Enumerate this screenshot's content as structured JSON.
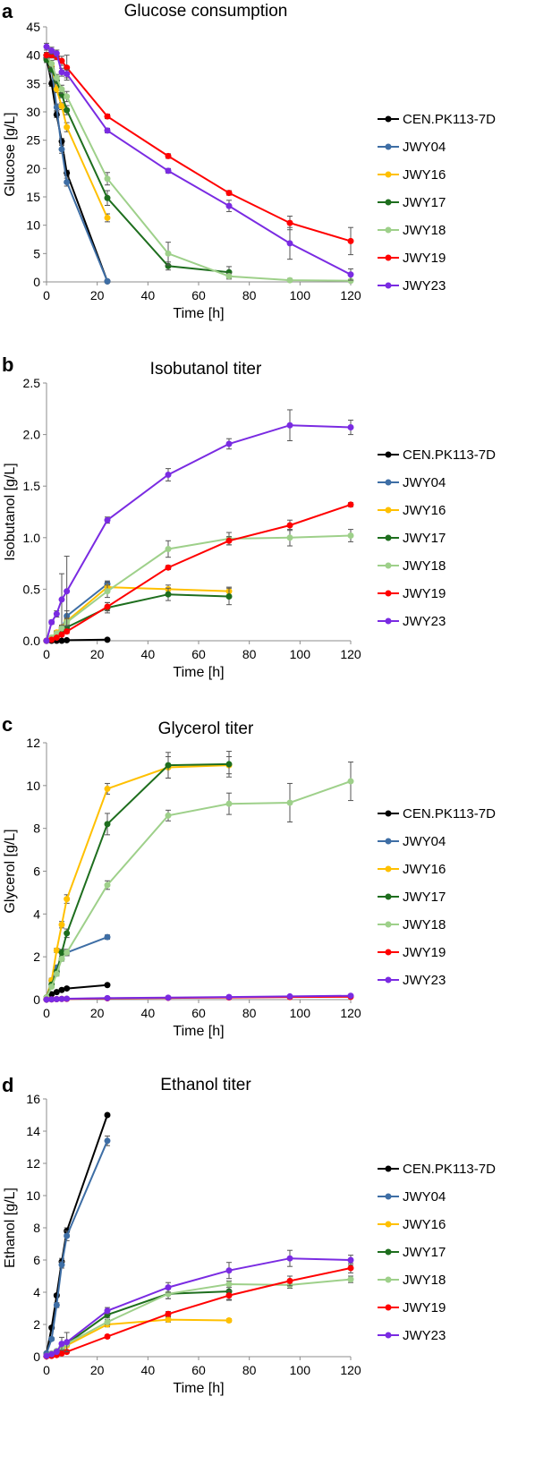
{
  "chart_data": [
    {
      "panel": "a",
      "type": "line",
      "title": "Glucose consumption",
      "xlabel": "Time [h]",
      "ylabel": "Glucose [g/L]",
      "xlim": [
        0,
        120
      ],
      "ylim": [
        0,
        45
      ],
      "xticks": [
        0,
        20,
        40,
        60,
        80,
        100,
        120
      ],
      "yticks": [
        0,
        5,
        10,
        15,
        20,
        25,
        30,
        35,
        40,
        45
      ],
      "grid": false,
      "legend": "right",
      "series": [
        {
          "name": "CEN.PK113-7D",
          "color": "#000000",
          "x": [
            0,
            2,
            4,
            6,
            8,
            24
          ],
          "y": [
            39.5,
            35.0,
            29.5,
            24.8,
            19.2,
            0.1
          ],
          "err": [
            0.5,
            0.5,
            0.5,
            0.5,
            0.5,
            0
          ]
        },
        {
          "name": "JWY04",
          "color": "#3E6EA5",
          "x": [
            0,
            2,
            4,
            6,
            8,
            24
          ],
          "y": [
            39.8,
            37.5,
            30.8,
            23.4,
            17.6,
            0.1
          ],
          "err": [
            0.5,
            0.6,
            0.6,
            0.7,
            0.7,
            0
          ]
        },
        {
          "name": "JWY16",
          "color": "#FFC000",
          "x": [
            0,
            2,
            4,
            6,
            8,
            24
          ],
          "y": [
            40.0,
            38.0,
            34.0,
            31.0,
            27.3,
            11.3
          ],
          "err": [
            0.5,
            0.6,
            0.6,
            0.6,
            0.8,
            0.7
          ]
        },
        {
          "name": "JWY17",
          "color": "#1E6E1E",
          "x": [
            0,
            2,
            4,
            6,
            8,
            24,
            48,
            72
          ],
          "y": [
            39.2,
            37.5,
            35.5,
            33.1,
            30.3,
            14.8,
            2.8,
            1.7
          ],
          "err": [
            0.5,
            0.5,
            0.6,
            0.6,
            0.8,
            1.3,
            0.7,
            1.0
          ]
        },
        {
          "name": "JWY18",
          "color": "#9ED08A",
          "x": [
            0,
            2,
            4,
            6,
            8,
            24,
            48,
            72,
            96,
            120
          ],
          "y": [
            40.0,
            38.5,
            36.0,
            34.0,
            32.7,
            18.2,
            5.0,
            1.0,
            0.3,
            0.2
          ],
          "err": [
            0.5,
            0.6,
            0.6,
            0.7,
            0.9,
            1.1,
            2.0,
            0.5,
            0.3,
            0.2
          ]
        },
        {
          "name": "JWY19",
          "color": "#FF0000",
          "x": [
            0,
            2,
            4,
            6,
            8,
            24,
            48,
            72,
            96,
            120
          ],
          "y": [
            40.0,
            40.0,
            39.7,
            39.0,
            37.8,
            29.2,
            22.2,
            15.7,
            10.4,
            7.2
          ],
          "err": [
            0.5,
            0.5,
            0.5,
            0.8,
            2.2,
            0.4,
            0.4,
            0.4,
            1.2,
            2.4
          ]
        },
        {
          "name": "JWY23",
          "color": "#7A2BE2",
          "x": [
            0,
            2,
            4,
            6,
            8,
            24,
            48,
            72,
            96,
            120
          ],
          "y": [
            41.5,
            40.8,
            40.3,
            37.0,
            36.7,
            26.7,
            19.6,
            13.4,
            6.8,
            1.3
          ],
          "err": [
            0.6,
            0.6,
            0.6,
            0.7,
            0.7,
            0.4,
            0.4,
            1.0,
            2.8,
            1.0
          ]
        }
      ]
    },
    {
      "panel": "b",
      "type": "line",
      "title": "Isobutanol titer",
      "xlabel": "Time [h]",
      "ylabel": "Isobutanol [g/L]",
      "xlim": [
        0,
        120
      ],
      "ylim": [
        0,
        2.5
      ],
      "xticks": [
        0,
        20,
        40,
        60,
        80,
        100,
        120
      ],
      "yticks": [
        "0.0",
        "0.5",
        "1.0",
        "1.5",
        "2.0",
        "2.5"
      ],
      "grid": false,
      "legend": "right",
      "series": [
        {
          "name": "CEN.PK113-7D",
          "color": "#000000",
          "x": [
            0,
            2,
            4,
            6,
            8,
            24
          ],
          "y": [
            0,
            0,
            0,
            0,
            0.005,
            0.01
          ],
          "err": [
            0,
            0,
            0,
            0,
            0,
            0
          ]
        },
        {
          "name": "JWY04",
          "color": "#3E6EA5",
          "x": [
            0,
            2,
            4,
            6,
            8,
            24
          ],
          "y": [
            0,
            0.02,
            0.06,
            0.12,
            0.24,
            0.55
          ],
          "err": [
            0,
            0.01,
            0.02,
            0.03,
            0.05,
            0.03
          ]
        },
        {
          "name": "JWY16",
          "color": "#FFC000",
          "x": [
            0,
            2,
            4,
            6,
            8,
            24,
            48,
            72
          ],
          "y": [
            0,
            0.03,
            0.08,
            0.13,
            0.19,
            0.52,
            0.5,
            0.48
          ],
          "err": [
            0,
            0.01,
            0.02,
            0.02,
            0.03,
            0.05,
            0.04,
            0.04
          ]
        },
        {
          "name": "JWY17",
          "color": "#1E6E1E",
          "x": [
            0,
            2,
            4,
            6,
            8,
            24,
            48,
            72
          ],
          "y": [
            0,
            0.02,
            0.05,
            0.09,
            0.13,
            0.32,
            0.45,
            0.43
          ],
          "err": [
            0,
            0.01,
            0.01,
            0.02,
            0.02,
            0.05,
            0.06,
            0.08
          ]
        },
        {
          "name": "JWY18",
          "color": "#9ED08A",
          "x": [
            0,
            2,
            4,
            6,
            8,
            24,
            48,
            72,
            96,
            120
          ],
          "y": [
            0,
            0.03,
            0.07,
            0.12,
            0.18,
            0.48,
            0.89,
            0.99,
            1.0,
            1.02
          ],
          "err": [
            0,
            0.01,
            0.02,
            0.02,
            0.03,
            0.06,
            0.08,
            0.06,
            0.08,
            0.06
          ]
        },
        {
          "name": "JWY19",
          "color": "#FF0000",
          "x": [
            0,
            2,
            4,
            6,
            8,
            24,
            48,
            72,
            96,
            120
          ],
          "y": [
            0,
            0.01,
            0.03,
            0.06,
            0.09,
            0.33,
            0.71,
            0.97,
            1.12,
            1.32
          ],
          "err": [
            0,
            0.01,
            0.01,
            0.01,
            0.02,
            0.04,
            0.02,
            0.04,
            0.05,
            0.02
          ]
        },
        {
          "name": "JWY23",
          "color": "#7A2BE2",
          "x": [
            0,
            2,
            4,
            6,
            8,
            24,
            48,
            72,
            96,
            120
          ],
          "y": [
            0,
            0.18,
            0.26,
            0.4,
            0.48,
            1.17,
            1.61,
            1.91,
            2.09,
            2.07
          ],
          "err": [
            0,
            0.02,
            0.03,
            0.25,
            0.34,
            0.03,
            0.06,
            0.05,
            0.15,
            0.07
          ]
        }
      ]
    },
    {
      "panel": "c",
      "type": "line",
      "title": "Glycerol titer",
      "xlabel": "Time [h]",
      "ylabel": "Glycerol [g/L]",
      "xlim": [
        0,
        120
      ],
      "ylim": [
        0,
        12
      ],
      "xticks": [
        0,
        20,
        40,
        60,
        80,
        100,
        120
      ],
      "yticks": [
        0,
        2,
        4,
        6,
        8,
        10,
        12
      ],
      "grid": false,
      "legend": "right",
      "series": [
        {
          "name": "CEN.PK113-7D",
          "color": "#000000",
          "x": [
            0,
            2,
            4,
            6,
            8,
            24
          ],
          "y": [
            0.05,
            0.25,
            0.35,
            0.45,
            0.52,
            0.68
          ],
          "err": [
            0,
            0.02,
            0.02,
            0.03,
            0.03,
            0.03
          ]
        },
        {
          "name": "JWY04",
          "color": "#3E6EA5",
          "x": [
            0,
            2,
            4,
            6,
            8,
            24
          ],
          "y": [
            0.1,
            0.9,
            1.5,
            1.9,
            2.2,
            2.92
          ],
          "err": [
            0,
            0.05,
            0.08,
            0.1,
            0.1,
            0.1
          ]
        },
        {
          "name": "JWY16",
          "color": "#FFC000",
          "x": [
            0,
            2,
            4,
            6,
            8,
            24,
            48,
            72
          ],
          "y": [
            0.1,
            0.9,
            2.3,
            3.5,
            4.7,
            9.85,
            10.85,
            10.95
          ],
          "err": [
            0,
            0.1,
            0.1,
            0.15,
            0.2,
            0.25,
            0.5,
            0.4
          ]
        },
        {
          "name": "JWY17",
          "color": "#1E6E1E",
          "x": [
            0,
            2,
            4,
            6,
            8,
            24,
            48,
            72
          ],
          "y": [
            0.1,
            0.7,
            1.3,
            2.2,
            3.1,
            8.2,
            10.95,
            11.0
          ],
          "err": [
            0,
            0.05,
            0.1,
            0.15,
            0.2,
            0.5,
            0.6,
            0.6
          ]
        },
        {
          "name": "JWY18",
          "color": "#9ED08A",
          "x": [
            0,
            2,
            4,
            6,
            8,
            24,
            48,
            72,
            96,
            120
          ],
          "y": [
            0.1,
            0.6,
            1.2,
            1.9,
            2.2,
            5.35,
            8.6,
            9.15,
            9.2,
            10.2
          ],
          "err": [
            0,
            0.05,
            0.1,
            0.1,
            0.15,
            0.2,
            0.25,
            0.5,
            0.9,
            0.9
          ]
        },
        {
          "name": "JWY19",
          "color": "#FF0000",
          "x": [
            0,
            2,
            4,
            6,
            8,
            24,
            48,
            72,
            96,
            120
          ],
          "y": [
            0,
            0.01,
            0.02,
            0.03,
            0.03,
            0.06,
            0.08,
            0.1,
            0.12,
            0.13
          ],
          "err": [
            0,
            0,
            0,
            0,
            0,
            0.01,
            0.01,
            0.01,
            0.01,
            0.01
          ]
        },
        {
          "name": "JWY23",
          "color": "#7A2BE2",
          "x": [
            0,
            2,
            4,
            6,
            8,
            24,
            48,
            72,
            96,
            120
          ],
          "y": [
            0,
            0.01,
            0.02,
            0.03,
            0.04,
            0.07,
            0.09,
            0.12,
            0.15,
            0.18
          ],
          "err": [
            0,
            0,
            0,
            0,
            0,
            0.01,
            0.01,
            0.01,
            0.01,
            0.01
          ]
        }
      ]
    },
    {
      "panel": "d",
      "type": "line",
      "title": "Ethanol titer",
      "xlabel": "Time [h]",
      "ylabel": "Ethanol [g/L]",
      "xlim": [
        0,
        120
      ],
      "ylim": [
        0,
        16
      ],
      "xticks": [
        0,
        20,
        40,
        60,
        80,
        100,
        120
      ],
      "yticks": [
        0,
        2,
        4,
        6,
        8,
        10,
        12,
        14,
        16
      ],
      "grid": false,
      "legend": "right",
      "series": [
        {
          "name": "CEN.PK113-7D",
          "color": "#000000",
          "x": [
            0,
            2,
            4,
            6,
            8,
            24
          ],
          "y": [
            0.2,
            1.8,
            3.8,
            5.9,
            7.8,
            15.0
          ],
          "err": [
            0,
            0.1,
            0.1,
            0.2,
            0.2,
            0
          ]
        },
        {
          "name": "JWY04",
          "color": "#3E6EA5",
          "x": [
            0,
            2,
            4,
            6,
            8,
            24
          ],
          "y": [
            0.2,
            1.1,
            3.2,
            5.7,
            7.5,
            13.4
          ],
          "err": [
            0,
            0.1,
            0.15,
            0.2,
            0.3,
            0.3
          ]
        },
        {
          "name": "JWY16",
          "color": "#FFC000",
          "x": [
            0,
            2,
            4,
            6,
            8,
            24,
            48,
            72
          ],
          "y": [
            0.05,
            0.15,
            0.3,
            0.5,
            0.7,
            2.0,
            2.3,
            2.25
          ],
          "err": [
            0,
            0.05,
            0.05,
            0.05,
            0.1,
            0.15,
            0.15,
            0.1
          ]
        },
        {
          "name": "JWY17",
          "color": "#1E6E1E",
          "x": [
            0,
            2,
            4,
            6,
            8,
            24,
            48,
            72
          ],
          "y": [
            0.05,
            0.2,
            0.35,
            0.55,
            0.8,
            2.6,
            3.9,
            4.05
          ],
          "err": [
            0,
            0.05,
            0.05,
            0.05,
            0.1,
            0.2,
            0.3,
            0.5
          ]
        },
        {
          "name": "JWY18",
          "color": "#9ED08A",
          "x": [
            0,
            2,
            4,
            6,
            8,
            24,
            48,
            72,
            96,
            120
          ],
          "y": [
            0.05,
            0.2,
            0.35,
            0.6,
            0.8,
            2.15,
            3.9,
            4.5,
            4.45,
            4.8
          ],
          "err": [
            0,
            0.05,
            0.05,
            0.05,
            0.1,
            0.15,
            0.3,
            0.2,
            0.2,
            0.2
          ]
        },
        {
          "name": "JWY19",
          "color": "#FF0000",
          "x": [
            0,
            2,
            4,
            6,
            8,
            24,
            48,
            72,
            96,
            120
          ],
          "y": [
            0.02,
            0.05,
            0.1,
            0.2,
            0.3,
            1.25,
            2.65,
            3.8,
            4.7,
            5.5
          ],
          "err": [
            0,
            0.02,
            0.02,
            0.03,
            0.05,
            0.1,
            0.15,
            0.3,
            0.3,
            0.3
          ]
        },
        {
          "name": "JWY23",
          "color": "#7A2BE2",
          "x": [
            0,
            2,
            4,
            6,
            8,
            24,
            48,
            72,
            96,
            120
          ],
          "y": [
            0.05,
            0.15,
            0.3,
            0.8,
            0.9,
            2.85,
            4.3,
            5.35,
            6.1,
            6.0
          ],
          "err": [
            0,
            0.05,
            0.05,
            0.4,
            0.6,
            0.2,
            0.3,
            0.5,
            0.5,
            0.3
          ]
        }
      ]
    }
  ]
}
